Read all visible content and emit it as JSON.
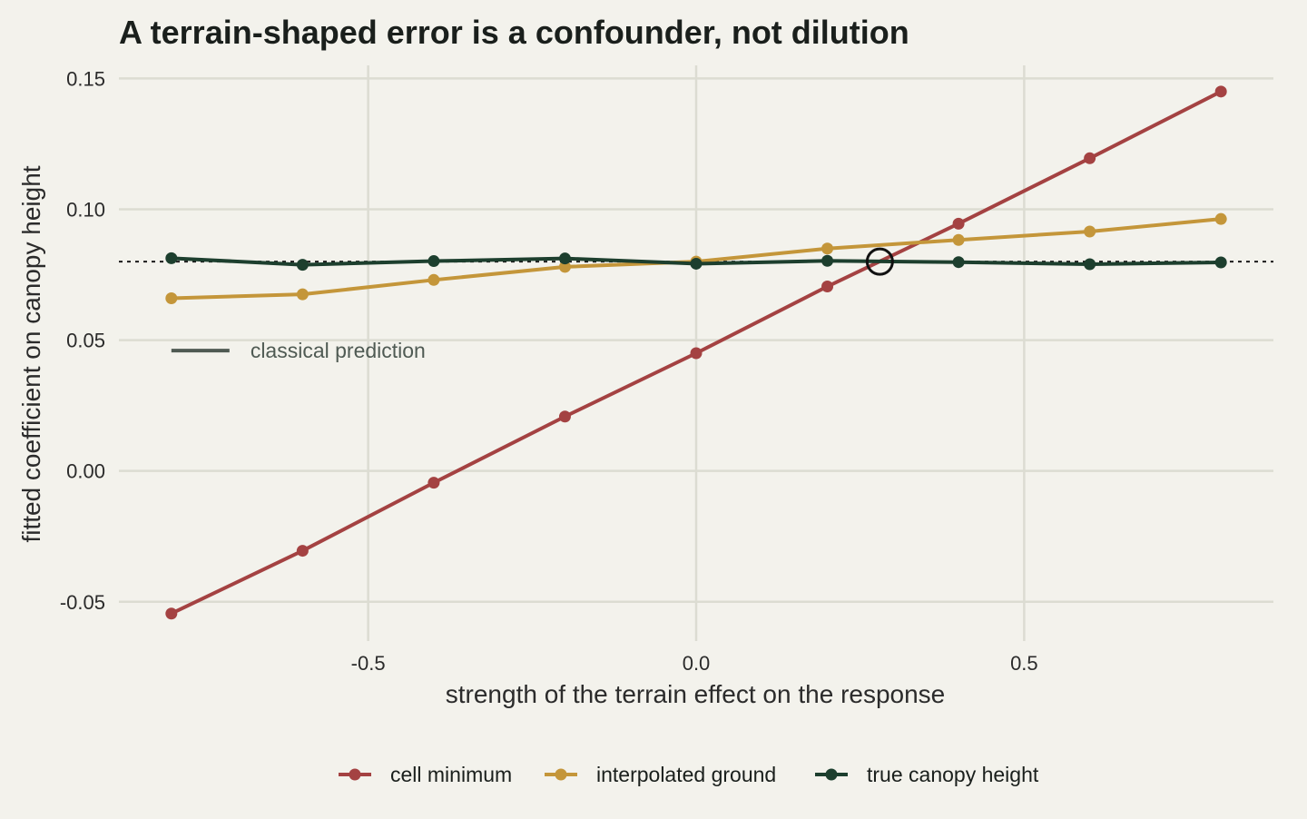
{
  "chart_data": {
    "type": "line",
    "title": "A terrain-shaped error is a confounder, not dilution",
    "xlabel": "strength of the terrain effect on the response",
    "ylabel": "fitted coefficient on canopy height",
    "x": [
      -0.8,
      -0.6,
      -0.4,
      -0.2,
      0.0,
      0.2,
      0.4,
      0.6,
      0.8
    ],
    "xlim": [
      -0.88,
      0.88
    ],
    "ylim": [
      -0.065,
      0.155
    ],
    "xticks": [
      -0.5,
      0.0,
      0.5
    ],
    "xtick_labels": [
      "-0.5",
      "0.0",
      "0.5"
    ],
    "yticks": [
      -0.05,
      0.0,
      0.05,
      0.1,
      0.15
    ],
    "ytick_labels": [
      "-0.05",
      "0.00",
      "0.05",
      "0.10",
      "0.15"
    ],
    "grid": true,
    "legend_position": "bottom",
    "series": [
      {
        "name": "cell minimum",
        "color": "#a44242",
        "values": [
          -0.0545,
          -0.0305,
          -0.0045,
          0.0208,
          0.045,
          0.0705,
          0.0945,
          0.1195,
          0.145
        ]
      },
      {
        "name": "interpolated ground",
        "color": "#c4963a",
        "values": [
          0.066,
          0.0675,
          0.073,
          0.078,
          0.08,
          0.085,
          0.0883,
          0.0915,
          0.0963
        ]
      },
      {
        "name": "true canopy height",
        "color": "#1d3f2e",
        "values": [
          0.0813,
          0.0788,
          0.0802,
          0.0812,
          0.0792,
          0.0803,
          0.0798,
          0.079,
          0.0797
        ]
      }
    ],
    "reference_line": {
      "y": 0.08,
      "style": "dotted",
      "color": "#1a1a1a"
    },
    "highlight_point": {
      "x": 0.28,
      "y": 0.08
    },
    "annotation": {
      "text": "classical prediction",
      "color": "#4f5a53",
      "x": -0.8,
      "y": 0.046
    }
  }
}
